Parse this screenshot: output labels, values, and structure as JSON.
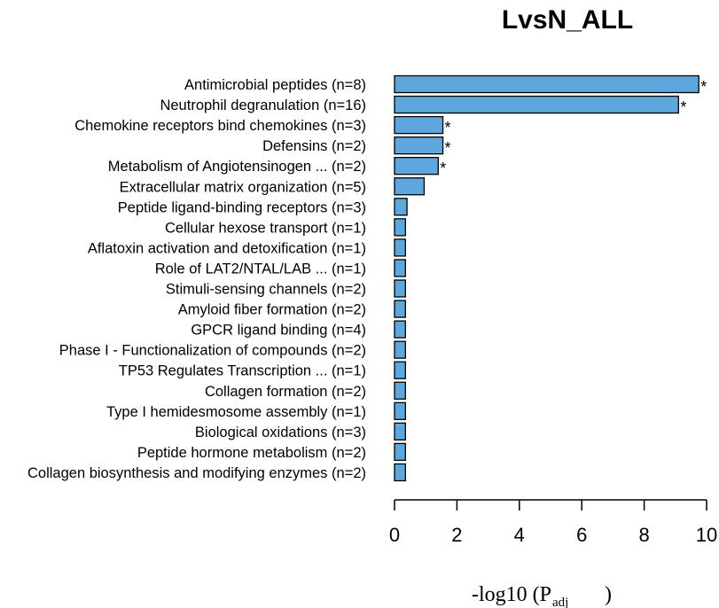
{
  "chart_data": {
    "type": "bar",
    "orientation": "horizontal",
    "title": "LvsN_ALL",
    "xlabel_main": "-log10 (P",
    "xlabel_sub": "adj",
    "xlabel_close": ")",
    "xlim": [
      0,
      10
    ],
    "xticks": [
      0,
      2,
      4,
      6,
      8,
      10
    ],
    "xtick_labels": [
      "0",
      "2",
      "4",
      "6",
      "8",
      "10"
    ],
    "bar_color": "#5da7dd",
    "categories": [
      "Antimicrobial peptides (n=8)",
      "Neutrophil degranulation (n=16)",
      "Chemokine receptors bind chemokines (n=3)",
      "Defensins (n=2)",
      "Metabolism of Angiotensinogen ... (n=2)",
      "Extracellular matrix organization (n=5)",
      "Peptide ligand-binding receptors (n=3)",
      "Cellular hexose transport (n=1)",
      "Aflatoxin activation and detoxification (n=1)",
      "Role of LAT2/NTAL/LAB ... (n=1)",
      "Stimuli-sensing channels (n=2)",
      "Amyloid fiber formation (n=2)",
      "GPCR ligand binding (n=4)",
      "Phase I - Functionalization of compounds (n=2)",
      "TP53 Regulates Transcription ... (n=1)",
      "Collagen formation (n=2)",
      "Type I hemidesmosome assembly (n=1)",
      "Biological oxidations (n=3)",
      "Peptide hormone metabolism (n=2)",
      "Collagen biosynthesis and modifying enzymes (n=2)"
    ],
    "values": [
      9.75,
      9.1,
      1.55,
      1.55,
      1.4,
      0.95,
      0.4,
      0.35,
      0.35,
      0.35,
      0.35,
      0.35,
      0.35,
      0.35,
      0.35,
      0.35,
      0.35,
      0.35,
      0.35,
      0.35
    ],
    "significant": [
      true,
      true,
      true,
      true,
      true,
      false,
      false,
      false,
      false,
      false,
      false,
      false,
      false,
      false,
      false,
      false,
      false,
      false,
      false,
      false
    ],
    "significance_marker": "*"
  }
}
